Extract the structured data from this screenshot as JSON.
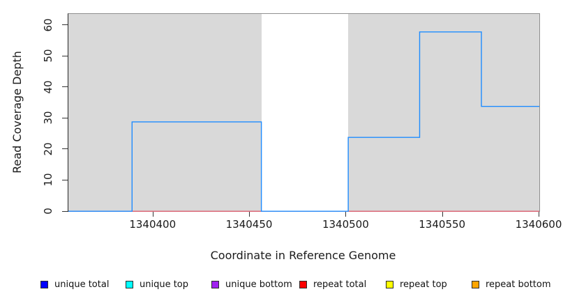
{
  "figure": {
    "x_axis_title": "Coordinate in Reference Genome",
    "y_axis_title": "Read Coverage Depth"
  },
  "chart_data": {
    "type": "line",
    "subtype": "step-coverage-plot",
    "title": "",
    "xlabel": "Coordinate in Reference Genome",
    "ylabel": "Read Coverage Depth",
    "xlim": [
      1340356,
      1340600
    ],
    "ylim": [
      0,
      63.8
    ],
    "x_ticks": [
      "1340400",
      "1340450",
      "1340500",
      "1340550",
      "1340600"
    ],
    "x_tick_values": [
      1340400,
      1340450,
      1340500,
      1340550,
      1340600
    ],
    "y_ticks": [
      "0",
      "10",
      "20",
      "30",
      "40",
      "50",
      "60"
    ],
    "y_tick_values": [
      0,
      10,
      20,
      30,
      40,
      50,
      60
    ],
    "grid": false,
    "plot_background": "#d9d9d9",
    "box_color": "#8f8f8f",
    "background_regions": [
      {
        "name": "unique-region-left",
        "x0": 1340356,
        "x1": 1340456,
        "color": "#d9d9d9"
      },
      {
        "name": "repeat-gap-white",
        "x0": 1340456,
        "x1": 1340501,
        "color": "#ffffff"
      },
      {
        "name": "unique-region-right",
        "x0": 1340501,
        "x1": 1340600,
        "color": "#d9d9d9"
      }
    ],
    "series": [
      {
        "name": "repeat total (baseline at 0)",
        "color": "#dc4257",
        "width": 1.2,
        "steps": [
          {
            "x0": 1340356,
            "x1": 1340600,
            "y": 0
          }
        ]
      },
      {
        "name": "unique total coverage",
        "color": "#1e8cff",
        "width": 1.4,
        "steps": [
          {
            "x0": 1340356,
            "x1": 1340389,
            "y": 0
          },
          {
            "x0": 1340389,
            "x1": 1340456,
            "y": 29
          },
          {
            "x0": 1340456,
            "x1": 1340501,
            "y": 0
          },
          {
            "x0": 1340501,
            "x1": 1340538,
            "y": 24
          },
          {
            "x0": 1340538,
            "x1": 1340570,
            "y": 58
          },
          {
            "x0": 1340570,
            "x1": 1340600,
            "y": 34
          }
        ]
      }
    ],
    "legend_position": "bottom-horizontal",
    "legend": [
      {
        "label": "unique total",
        "color": "#0000ff"
      },
      {
        "label": "unique top",
        "color": "#00ffff"
      },
      {
        "label": "unique bottom",
        "color": "#a020f0"
      },
      {
        "label": "repeat total",
        "color": "#ff0000"
      },
      {
        "label": "repeat top",
        "color": "#ffff00"
      },
      {
        "label": "repeat bottom",
        "color": "#ffa500"
      }
    ]
  }
}
